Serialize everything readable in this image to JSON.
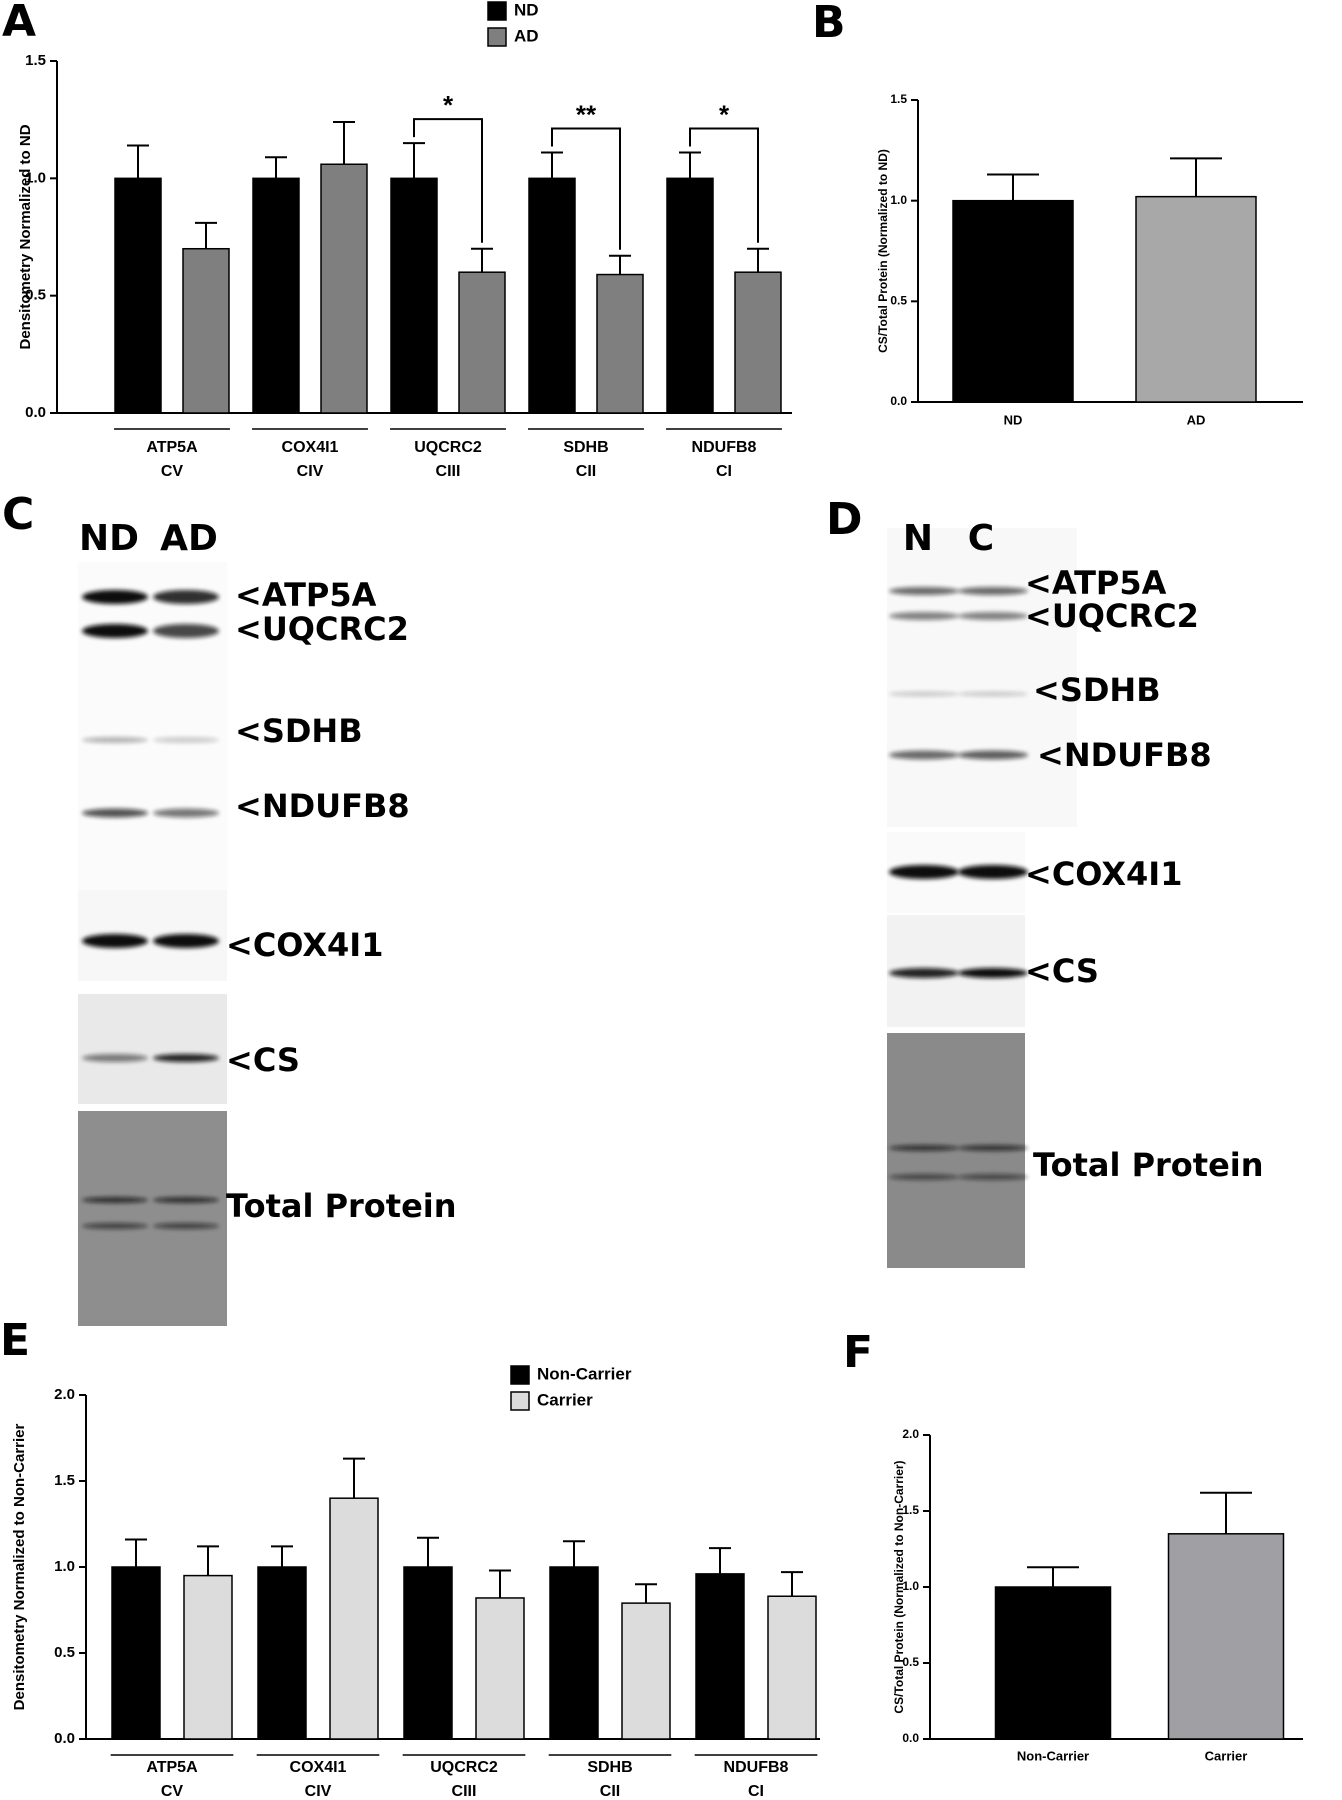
{
  "chart_data": [
    {
      "panel": "A",
      "type": "bar",
      "ylabel": "Densitometry Normalized to ND",
      "categories": [
        [
          "ATP5A",
          "CV"
        ],
        [
          "COX4I1",
          "CIV"
        ],
        [
          "UQCRC2",
          "CIII"
        ],
        [
          "SDHB",
          "CII"
        ],
        [
          "NDUFB8",
          "CI"
        ]
      ],
      "series": [
        {
          "name": "ND",
          "color": "#000000",
          "values": [
            1.0,
            1.0,
            1.0,
            1.0,
            1.0
          ],
          "errors": [
            0.14,
            0.09,
            0.15,
            0.11,
            0.11
          ]
        },
        {
          "name": "AD",
          "color": "#7f7f7f",
          "values": [
            0.7,
            1.06,
            0.6,
            0.59,
            0.6
          ],
          "errors": [
            0.11,
            0.18,
            0.1,
            0.08,
            0.1
          ]
        }
      ],
      "significance": [
        null,
        null,
        "*",
        "**",
        "*"
      ],
      "ylim": [
        0,
        1.5
      ],
      "yticks": [
        {
          "value": 0,
          "label": "0.0"
        },
        0.5,
        {
          "value": 1,
          "label": "1.0"
        },
        1.5
      ]
    },
    {
      "panel": "B",
      "type": "bar",
      "ylabel": "CS/Total  Protein  (Normalized to ND)",
      "categories": [
        "ND",
        "AD"
      ],
      "values": [
        1.0,
        1.02
      ],
      "errors": [
        0.13,
        0.19
      ],
      "colors": [
        "#000000",
        "#a8a8a8"
      ],
      "ylim": [
        0,
        1.5
      ],
      "yticks": [
        {
          "value": 0,
          "label": "0.0"
        },
        0.5,
        {
          "value": 1,
          "label": "1.0"
        },
        1.5
      ]
    },
    {
      "panel": "E",
      "type": "bar",
      "ylabel": "Densitometry Normalized to Non-Carrier",
      "categories": [
        [
          "ATP5A",
          "CV"
        ],
        [
          "COX4I1",
          "CIV"
        ],
        [
          "UQCRC2",
          "CIII"
        ],
        [
          "SDHB",
          "CII"
        ],
        [
          "NDUFB8",
          "CI"
        ]
      ],
      "series": [
        {
          "name": "Non-Carrier",
          "color": "#000000",
          "values": [
            1.0,
            1.0,
            1.0,
            1.0,
            0.96
          ],
          "errors": [
            0.16,
            0.12,
            0.17,
            0.15,
            0.15
          ]
        },
        {
          "name": "Carrier",
          "color": "#dcdcdc",
          "values": [
            0.95,
            1.4,
            0.82,
            0.79,
            0.83
          ],
          "errors": [
            0.17,
            0.23,
            0.16,
            0.11,
            0.14
          ]
        }
      ],
      "ylim": [
        0,
        2
      ],
      "yticks": [
        {
          "value": 0,
          "label": "0.0"
        },
        0.5,
        {
          "value": 1,
          "label": "1.0"
        },
        1.5,
        {
          "value": 2,
          "label": "2.0"
        }
      ]
    },
    {
      "panel": "F",
      "type": "bar",
      "ylabel": "CS/Total  Protein  (Normalized to Non-Carrier)",
      "categories": [
        "Non-Carrier",
        "Carrier"
      ],
      "values": [
        1.0,
        1.35
      ],
      "errors": [
        0.13,
        0.27
      ],
      "colors": [
        "#000000",
        "#a0a0a4"
      ],
      "ylim": [
        0,
        2
      ],
      "yticks": [
        {
          "value": 0,
          "label": "0.0"
        },
        0.5,
        {
          "value": 1,
          "label": "1.0"
        },
        1.5,
        {
          "value": 2,
          "label": "2.0"
        }
      ]
    }
  ],
  "blots": [
    {
      "panel": "C",
      "lanes": [
        "ND",
        "AD"
      ],
      "labels": [
        "<ATP5A",
        "<UQCRC2",
        "<SDHB",
        "<NDUFB8",
        "<COX4I1",
        "<CS",
        "Total Protein"
      ]
    },
    {
      "panel": "D",
      "lanes": [
        "N",
        "C"
      ],
      "labels": [
        "<ATP5A",
        "<UQCRC2",
        "<SDHB",
        "<NDUFB8",
        "<COX4I1",
        "<CS",
        "Total Protein"
      ]
    }
  ]
}
